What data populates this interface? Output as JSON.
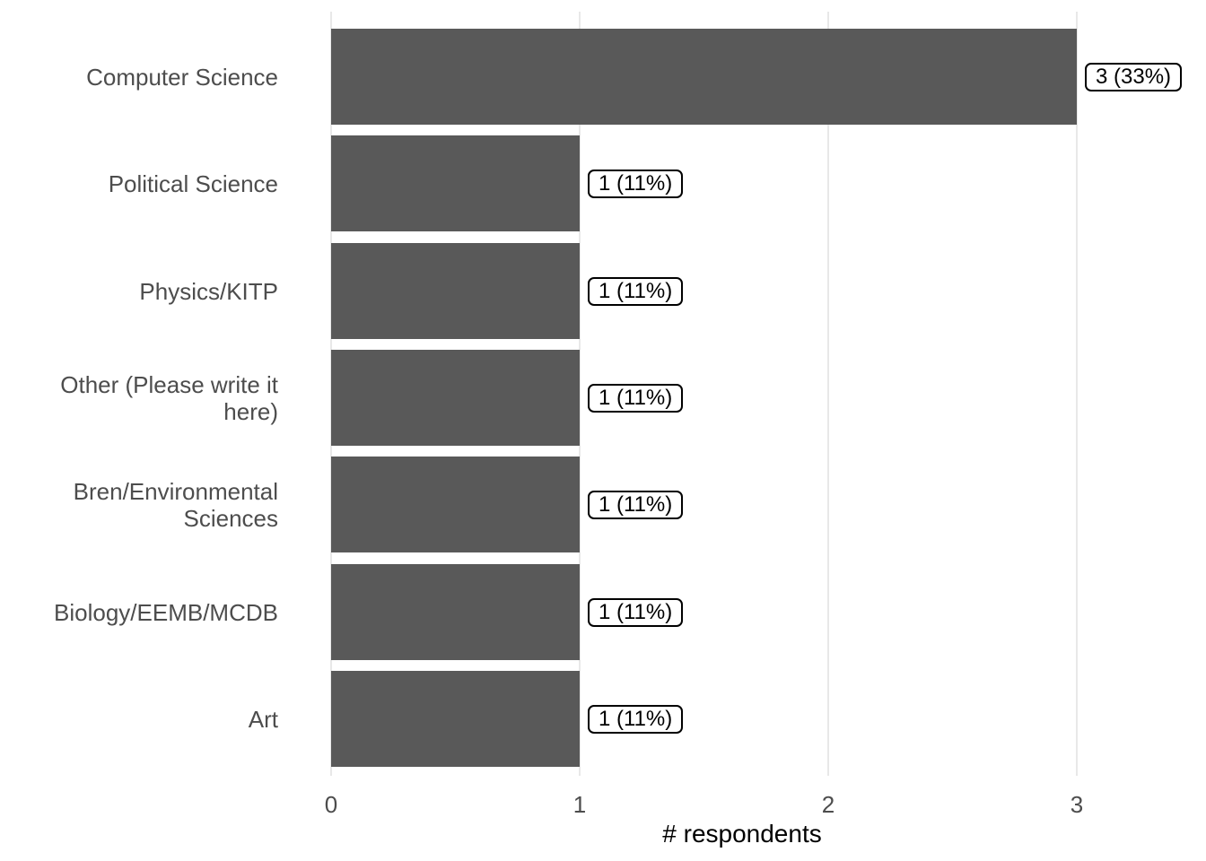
{
  "chart_data": {
    "type": "bar",
    "orientation": "horizontal",
    "title": "",
    "xlabel": "# respondents",
    "ylabel": "",
    "categories": [
      "Computer Science",
      "Political Science",
      "Physics/KITP",
      "Other (Please write it here)",
      "Bren/Environmental Sciences",
      "Biology/EEMB/MCDB",
      "Art"
    ],
    "values": [
      3,
      1,
      1,
      1,
      1,
      1,
      1
    ],
    "bar_labels": [
      "3 (33%)",
      "1 (11%)",
      "1 (11%)",
      "1 (11%)",
      "1 (11%)",
      "1 (11%)",
      "1 (11%)"
    ],
    "x_ticks": [
      0,
      1,
      2,
      3
    ],
    "xlim": [
      0,
      3
    ],
    "grid": "vertical-major-only",
    "legend": "none",
    "colors": {
      "bar": "#595959",
      "grid": "#e8e8e8",
      "axis_text": "#4d4d4d",
      "axis_title": "#000000",
      "annotation_text": "#000000",
      "annotation_bg": "#ffffff",
      "annotation_border": "#000000",
      "background": "#ffffff"
    }
  }
}
